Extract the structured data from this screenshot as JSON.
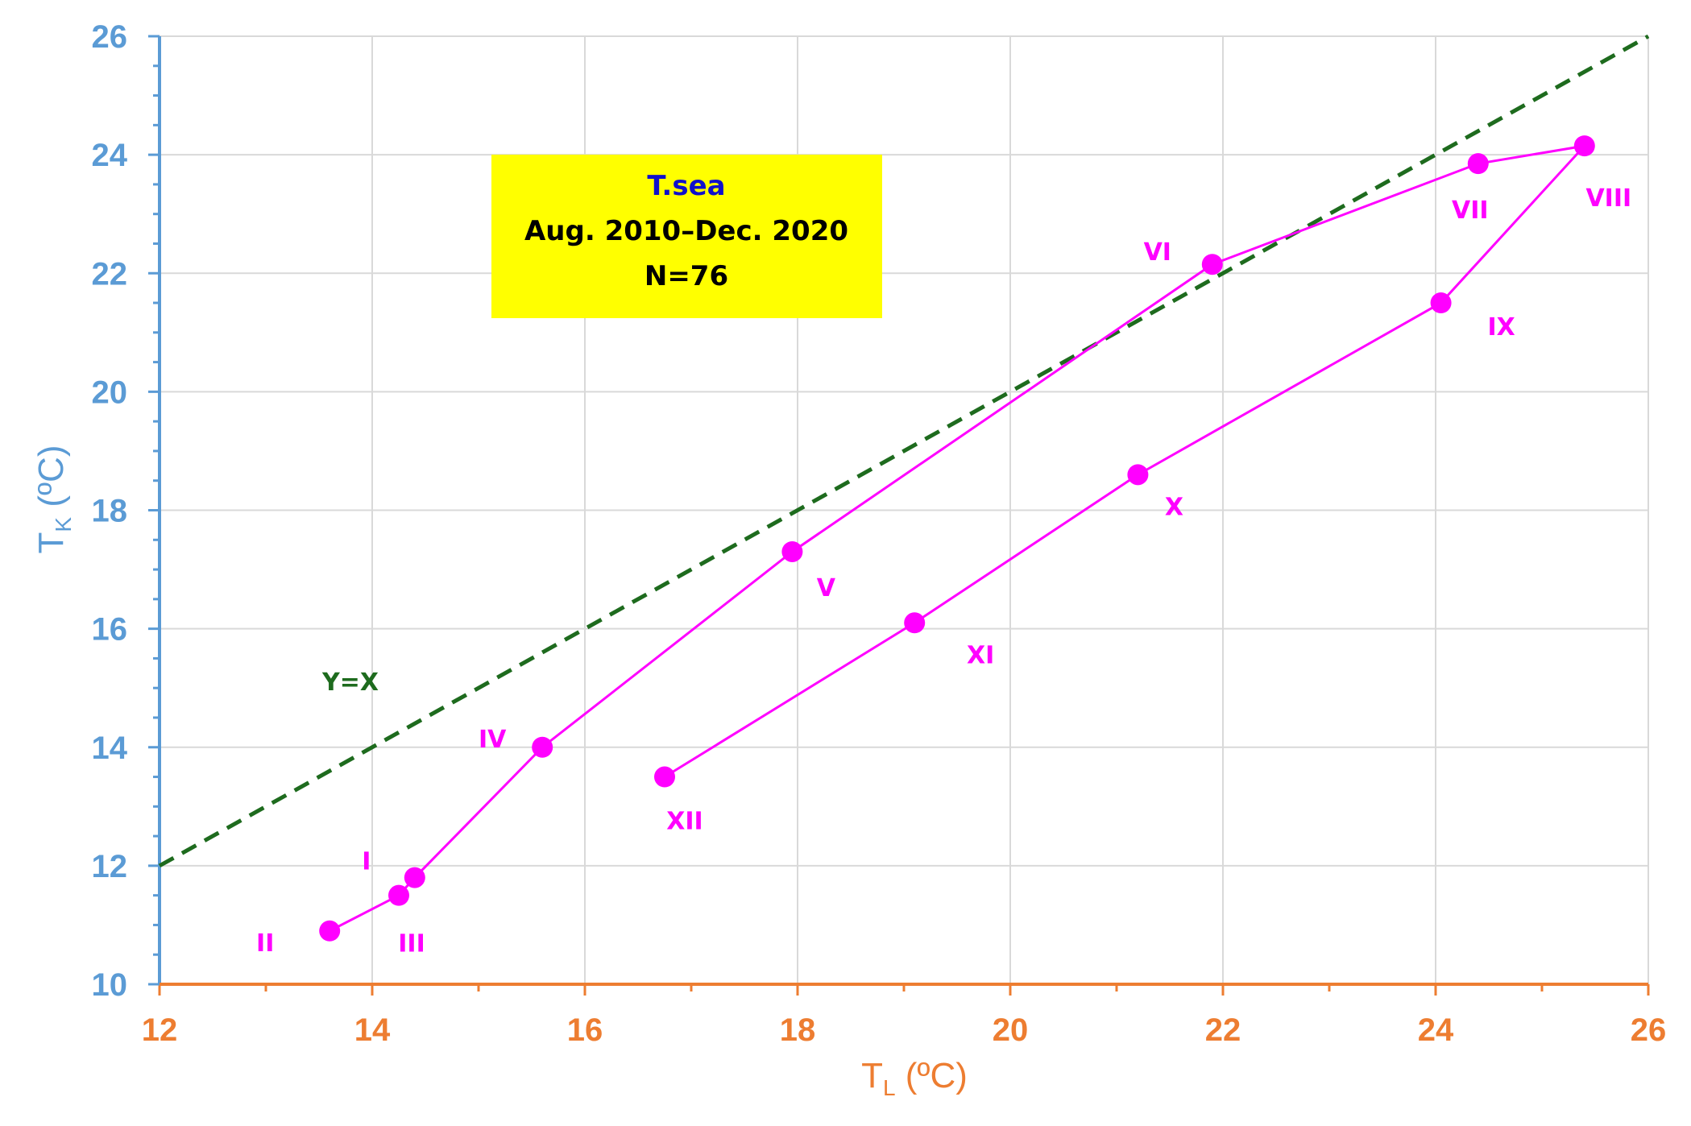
{
  "chart_data": {
    "type": "line",
    "xlabel": "T",
    "xlabel_sub": "L",
    "xlabel_unit": " (ºC)",
    "ylabel": "T",
    "ylabel_sub": "K",
    "ylabel_unit": " (ºC)",
    "xlim": [
      12,
      26
    ],
    "ylim": [
      10,
      26
    ],
    "xticks": [
      12,
      14,
      16,
      18,
      20,
      22,
      24,
      26
    ],
    "yticks": [
      10,
      12,
      14,
      16,
      18,
      20,
      22,
      24,
      26
    ],
    "grid": true,
    "series": [
      {
        "color": "#ff00ff",
        "points": [
          {
            "label": "XII",
            "x": 16.75,
            "y": 13.5
          },
          {
            "label": "XI",
            "x": 19.1,
            "y": 16.1
          },
          {
            "label": "X",
            "x": 21.2,
            "y": 18.6
          },
          {
            "label": "IX",
            "x": 24.05,
            "y": 21.5
          },
          {
            "label": "VIII",
            "x": 25.4,
            "y": 24.15
          },
          {
            "label": "VII",
            "x": 24.4,
            "y": 23.85
          },
          {
            "label": "VI",
            "x": 21.9,
            "y": 22.15
          },
          {
            "label": "V",
            "x": 17.95,
            "y": 17.3
          },
          {
            "label": "IV",
            "x": 15.6,
            "y": 14.0
          },
          {
            "label": "I",
            "x": 14.4,
            "y": 11.8
          },
          {
            "label": "III",
            "x": 14.25,
            "y": 11.5
          },
          {
            "label": "II",
            "x": 13.6,
            "y": 10.9
          }
        ]
      }
    ],
    "reference_line": {
      "label": "Y=X",
      "color": "#1e6b1e",
      "from": [
        12,
        12
      ],
      "to": [
        26,
        26
      ]
    },
    "annotation_box": {
      "line1": "T.sea",
      "line2": "Aug. 2010–Dec. 2020",
      "line3": "N=76",
      "background": "#ffff00",
      "line1_color": "#1010cc",
      "text_color": "#000000"
    }
  }
}
